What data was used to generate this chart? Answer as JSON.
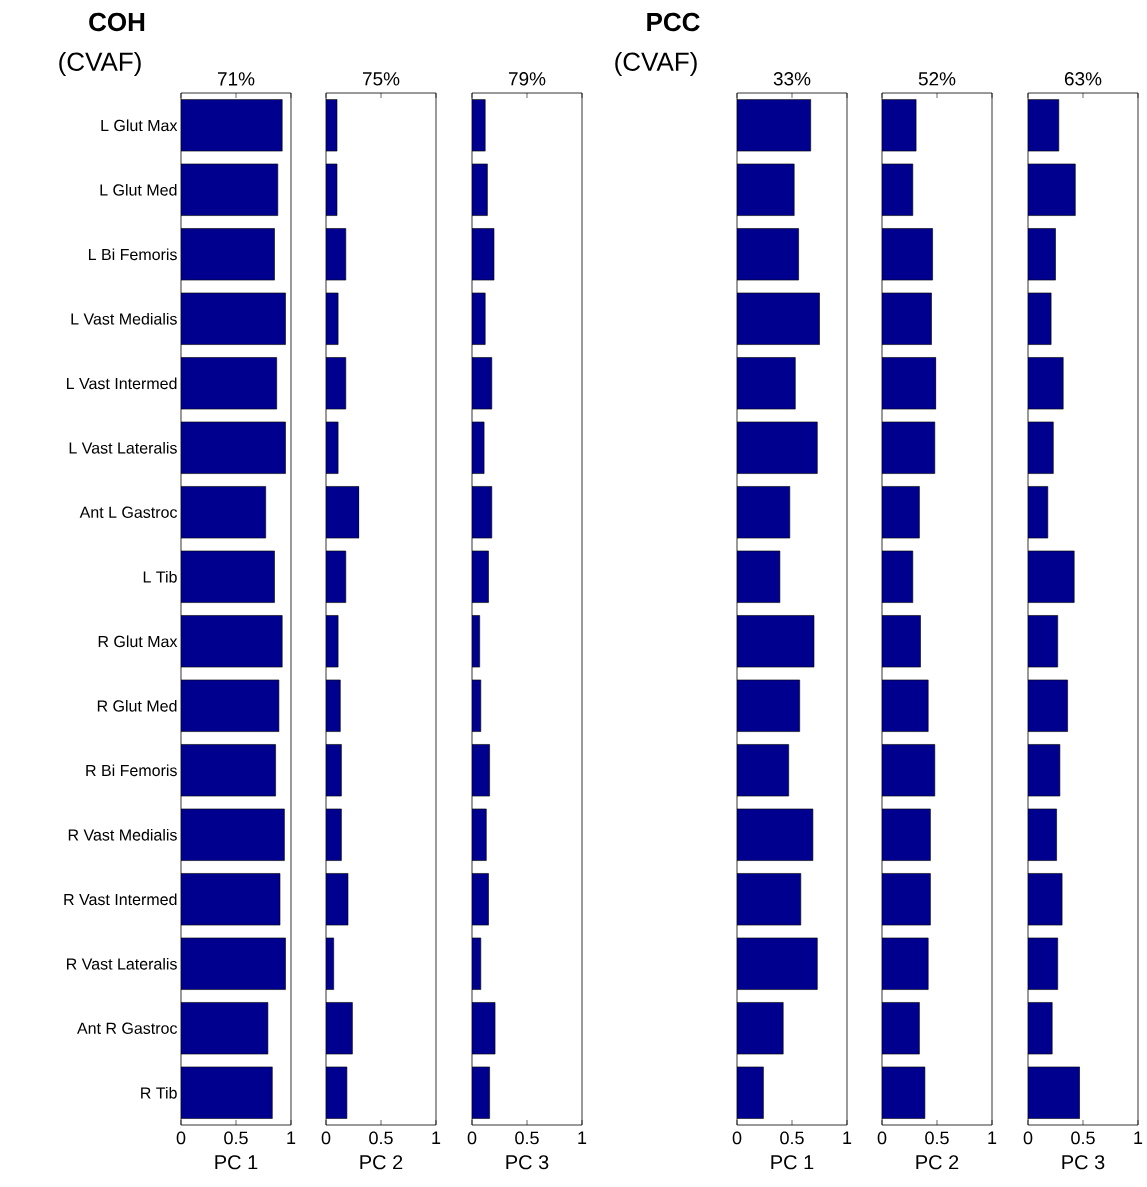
{
  "chart_data": [
    {
      "type": "bar",
      "orientation": "horizontal",
      "title": "71%",
      "xlabel": "PC 1",
      "annotations": [
        "COH",
        "(CVAF)"
      ],
      "color": "#00008f",
      "xlim": [
        0,
        1
      ],
      "xticks": [
        0,
        0.5,
        1
      ],
      "categories": [
        "L Glut Max",
        "L Glut Med",
        "L Bi Femoris",
        "L Vast Medialis",
        "L Vast Intermed",
        "L Vast Lateralis",
        "Ant L Gastroc",
        "L Tib",
        "R Glut Max",
        "R Glut Med",
        "R Bi Femoris",
        "R Vast Medialis",
        "R Vast Intermed",
        "R Vast Lateralis",
        "Ant R Gastroc",
        "R Tib"
      ],
      "values": [
        0.92,
        0.88,
        0.85,
        0.95,
        0.87,
        0.95,
        0.77,
        0.85,
        0.92,
        0.89,
        0.86,
        0.94,
        0.9,
        0.95,
        0.79,
        0.83
      ]
    },
    {
      "type": "bar",
      "orientation": "horizontal",
      "title": "75%",
      "xlabel": "PC 2",
      "color": "#00008f",
      "xlim": [
        0,
        1
      ],
      "xticks": [
        0,
        0.5,
        1
      ],
      "tick_labels": "x",
      "values": [
        0.1,
        0.1,
        0.18,
        0.11,
        0.18,
        0.11,
        0.3,
        0.18,
        0.11,
        0.13,
        0.14,
        0.14,
        0.2,
        0.07,
        0.24,
        0.19
      ]
    },
    {
      "type": "bar",
      "orientation": "horizontal",
      "title": "79%",
      "xlabel": "PC 3",
      "color": "#00008f",
      "xlim": [
        0,
        1
      ],
      "xticks": [
        0,
        0.5,
        1
      ],
      "tick_labels": "x",
      "values": [
        0.12,
        0.14,
        0.2,
        0.12,
        0.18,
        0.11,
        0.18,
        0.15,
        0.07,
        0.08,
        0.16,
        0.13,
        0.15,
        0.08,
        0.21,
        0.16
      ]
    },
    {
      "type": "bar",
      "orientation": "horizontal",
      "title": "33%",
      "xlabel": "PC 1",
      "annotations": [
        "PCC",
        "(CVAF)"
      ],
      "color": "#00008f",
      "xlim": [
        0,
        1
      ],
      "xticks": [
        0,
        0.5,
        1
      ],
      "tick_labels": "x",
      "values": [
        0.67,
        0.52,
        0.56,
        0.75,
        0.53,
        0.73,
        0.48,
        0.39,
        0.7,
        0.57,
        0.47,
        0.69,
        0.58,
        0.73,
        0.42,
        0.24
      ]
    },
    {
      "type": "bar",
      "orientation": "horizontal",
      "title": "52%",
      "xlabel": "PC 2",
      "color": "#00008f",
      "xlim": [
        0,
        1
      ],
      "xticks": [
        0,
        0.5,
        1
      ],
      "tick_labels": "x",
      "values": [
        0.31,
        0.28,
        0.46,
        0.45,
        0.49,
        0.48,
        0.34,
        0.28,
        0.35,
        0.42,
        0.48,
        0.44,
        0.44,
        0.42,
        0.34,
        0.39
      ]
    },
    {
      "type": "bar",
      "orientation": "horizontal",
      "title": "63%",
      "xlabel": "PC 3",
      "color": "#00008f",
      "xlim": [
        0,
        1
      ],
      "xticks": [
        0,
        0.5,
        1
      ],
      "tick_labels": "x",
      "values": [
        0.28,
        0.43,
        0.25,
        0.21,
        0.32,
        0.23,
        0.18,
        0.42,
        0.27,
        0.36,
        0.29,
        0.26,
        0.31,
        0.27,
        0.22,
        0.47
      ]
    }
  ]
}
